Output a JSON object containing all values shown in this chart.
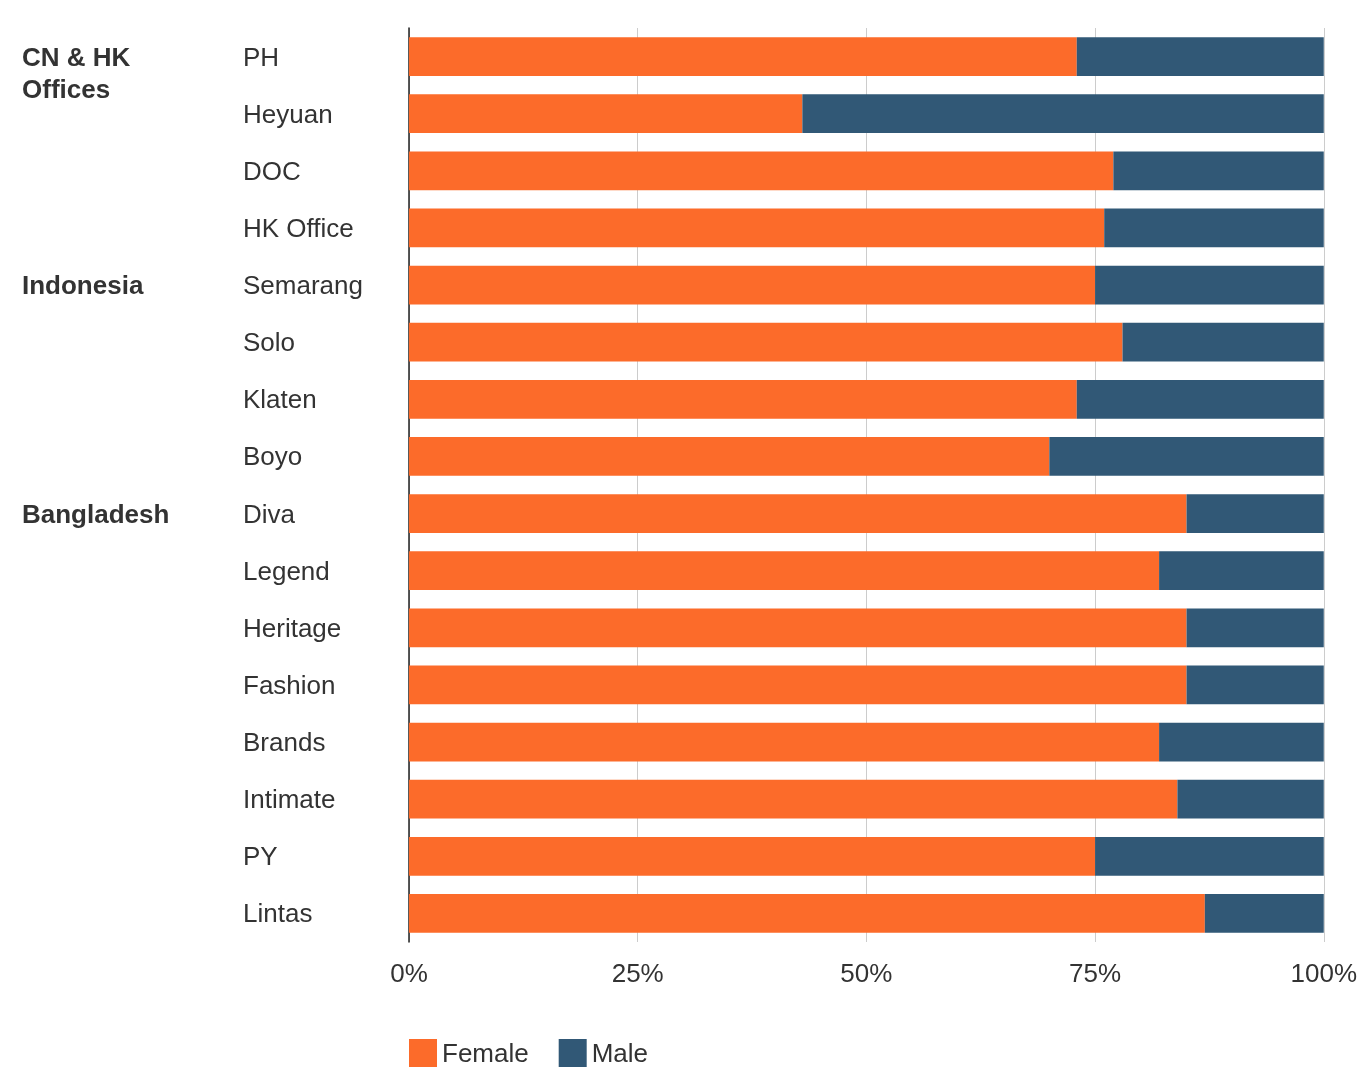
{
  "chart_data": {
    "type": "bar",
    "orientation": "horizontal",
    "stacked": true,
    "categories": [
      "PH",
      "Heyuan",
      "DOC",
      "HK Office",
      "Semarang",
      "Solo",
      "Klaten",
      "Boyo",
      "Diva",
      "Legend",
      "Heritage",
      "Fashion",
      "Brands",
      "Intimate",
      "PY",
      "Lintas"
    ],
    "series": [
      {
        "name": "Female",
        "color": "#fc6b2a",
        "values": [
          73,
          43,
          77,
          76,
          75,
          78,
          73,
          70,
          85,
          82,
          85,
          85,
          82,
          84,
          75,
          87
        ]
      },
      {
        "name": "Male",
        "color": "#315876",
        "values": [
          27,
          57,
          23,
          24,
          25,
          22,
          27,
          30,
          15,
          18,
          15,
          15,
          18,
          16,
          25,
          13
        ]
      }
    ],
    "xlim": [
      0,
      100
    ],
    "xticks": [
      {
        "value": 0,
        "label": "0%"
      },
      {
        "value": 25,
        "label": "25%"
      },
      {
        "value": 50,
        "label": "50%"
      },
      {
        "value": 75,
        "label": "75%"
      },
      {
        "value": 100,
        "label": "100%"
      }
    ],
    "annotations": [
      "CN & HK\nOffices",
      "Indonesia",
      "Bangladesh"
    ],
    "grid": "x",
    "legend": "bottom"
  }
}
